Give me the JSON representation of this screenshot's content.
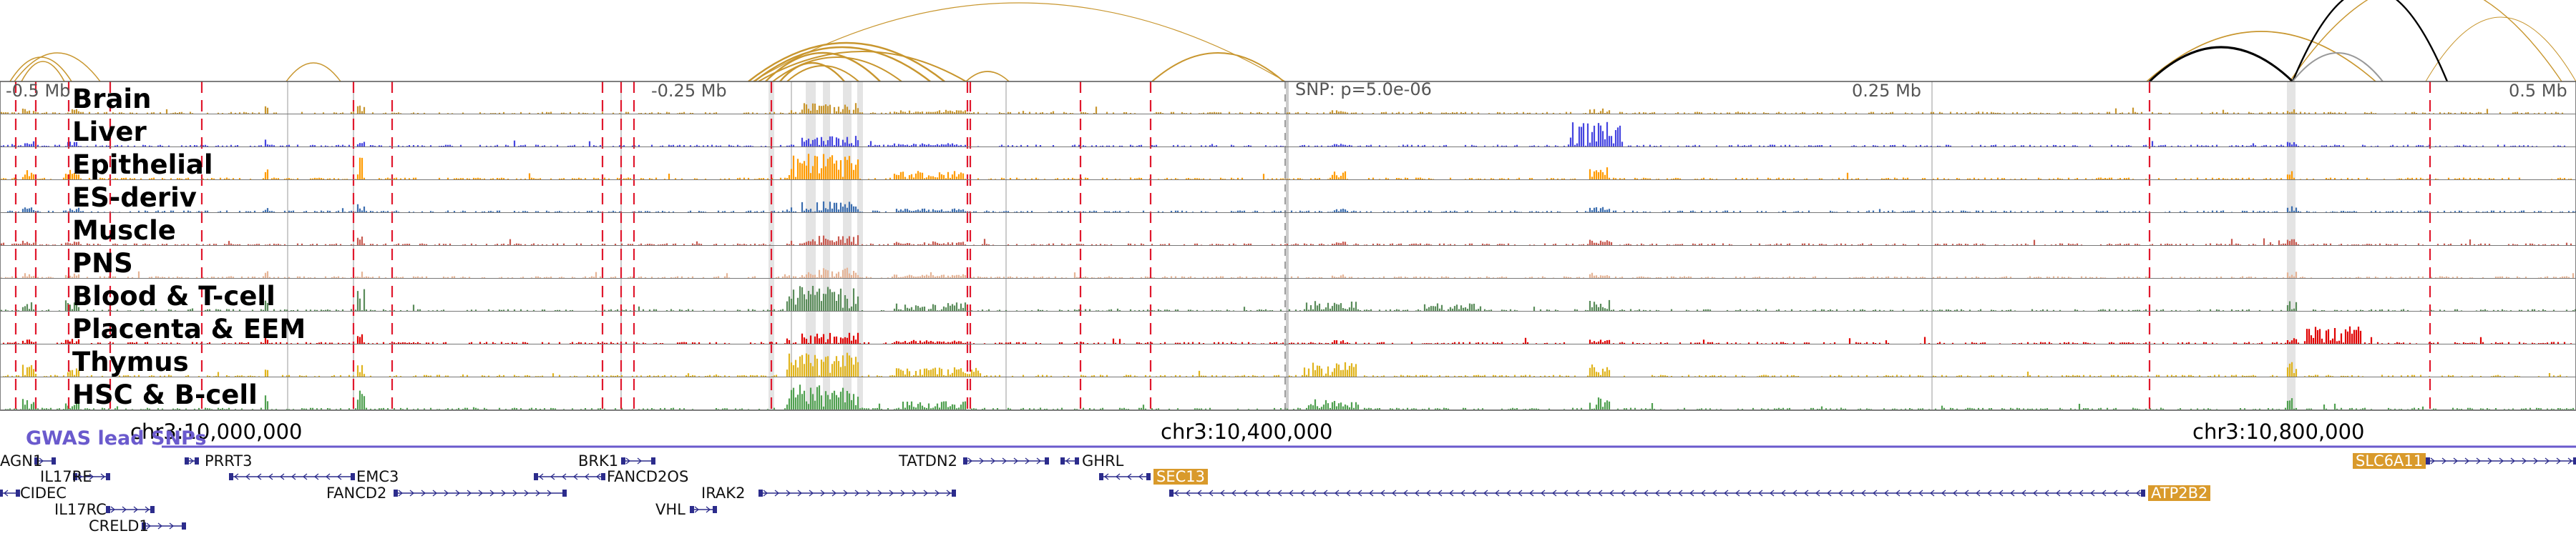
{
  "browser": {
    "snp_label": "SNP: p=5.0e-06",
    "offsets": [
      "-0.5 Mb",
      "-0.25 Mb",
      "0.25 Mb",
      "0.5 Mb"
    ],
    "coordinates": [
      "chr3:10,000,000",
      "chr3:10,400,000",
      "chr3:10,800,000"
    ],
    "gwas_title": "GWAS lead SNPs",
    "colors": {
      "arc": "#c8962e",
      "arc_highlight": "#000000",
      "gwas": "#6a5acd",
      "gene": "#2c2c8c",
      "gene_highlight_bg": "#d99a2b",
      "marker_dashed": "#e0182d"
    }
  },
  "tracks": [
    {
      "label": "Brain",
      "color": "#c8962e"
    },
    {
      "label": "Liver",
      "color": "#4545e0"
    },
    {
      "label": "Epithelial",
      "color": "#ff9b00"
    },
    {
      "label": "ES-deriv",
      "color": "#3c6eaf"
    },
    {
      "label": "Muscle",
      "color": "#c85a50"
    },
    {
      "label": "PNS",
      "color": "#e6b496"
    },
    {
      "label": "Blood & T-cell",
      "color": "#5a8c5a"
    },
    {
      "label": "Placenta & EEM",
      "color": "#e00000"
    },
    {
      "label": "Thymus",
      "color": "#e0b41e"
    },
    {
      "label": "HSC & B-cell",
      "color": "#50a050"
    }
  ],
  "genes": [
    {
      "name": "AGN1"
    },
    {
      "name": "IL17RE"
    },
    {
      "name": "CIDEC"
    },
    {
      "name": "IL17RC"
    },
    {
      "name": "CRELD1"
    },
    {
      "name": "PRRT3"
    },
    {
      "name": "EMC3"
    },
    {
      "name": "FANCD2"
    },
    {
      "name": "BRK1"
    },
    {
      "name": "FANCD2OS"
    },
    {
      "name": "IRAK2"
    },
    {
      "name": "VHL"
    },
    {
      "name": "TATDN2"
    },
    {
      "name": "GHRL"
    },
    {
      "name": "SEC13",
      "highlight": true
    },
    {
      "name": "ATP2B2",
      "highlight": true
    },
    {
      "name": "SLC6A11",
      "highlight": true
    }
  ]
}
